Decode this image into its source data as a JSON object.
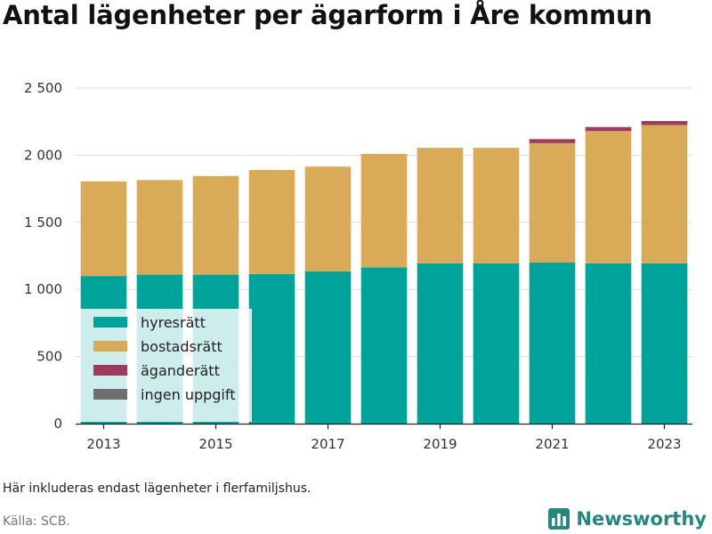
{
  "title": "Antal lägenheter per ägarform i Åre kommun",
  "note": "Här inkluderas endast lägenheter i flerfamiljshus.",
  "source": "Källa: SCB.",
  "brand": {
    "name": "Newsworthy",
    "icon": "bar-chart-logo-icon",
    "color": "#27877d"
  },
  "chart_data": {
    "type": "bar",
    "stacked": true,
    "categories": [
      "2013",
      "2014",
      "2015",
      "2016",
      "2017",
      "2018",
      "2019",
      "2020",
      "2021",
      "2022",
      "2023"
    ],
    "x_tick_labels": [
      "2013",
      "2015",
      "2017",
      "2019",
      "2021",
      "2023"
    ],
    "series": [
      {
        "name": "hyresrätt",
        "color": "#00a39a",
        "values": [
          1100,
          1110,
          1110,
          1115,
          1135,
          1165,
          1195,
          1195,
          1200,
          1195,
          1195
        ]
      },
      {
        "name": "bostadsrätt",
        "color": "#d9ab58",
        "values": [
          705,
          705,
          735,
          775,
          780,
          845,
          860,
          860,
          890,
          985,
          1030
        ]
      },
      {
        "name": "äganderätt",
        "color": "#9e3a5f",
        "values": [
          0,
          0,
          0,
          0,
          0,
          0,
          0,
          0,
          30,
          30,
          30
        ]
      },
      {
        "name": "ingen uppgift",
        "color": "#6d6e70",
        "values": [
          0,
          0,
          0,
          0,
          0,
          0,
          0,
          0,
          0,
          0,
          0
        ]
      }
    ],
    "ylim": [
      0,
      2500
    ],
    "y_ticks": [
      0,
      500,
      1000,
      1500,
      2000,
      2500
    ],
    "y_tick_labels": [
      "0",
      "500",
      "1 000",
      "1 500",
      "2 000",
      "2 500"
    ],
    "grid": true,
    "legend_position": "bottom-left"
  }
}
